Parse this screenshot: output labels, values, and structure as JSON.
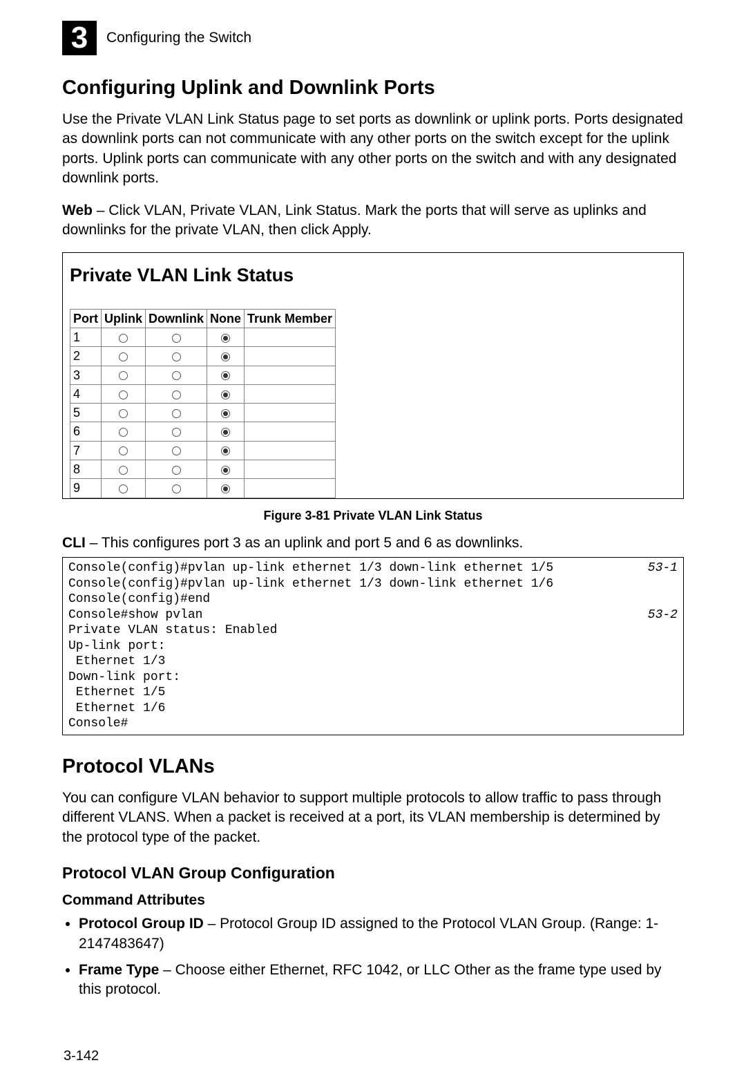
{
  "header": {
    "chapter_num": "3",
    "chapter_title": "Configuring the Switch"
  },
  "section1": {
    "title": "Configuring Uplink and Downlink Ports",
    "intro": "Use the Private VLAN Link Status page to set ports as downlink or uplink ports. Ports designated as downlink ports can not communicate with any other ports on the switch except for the uplink ports. Uplink ports can communicate with any other ports on the switch and with any designated downlink ports.",
    "web_label": "Web",
    "web_text": " – Click VLAN, Private VLAN, Link Status. Mark the ports that will serve as uplinks and downlinks for the private VLAN, then click Apply."
  },
  "figure": {
    "panel_title": "Private VLAN Link Status",
    "columns": [
      "Port",
      "Uplink",
      "Downlink",
      "None",
      "Trunk Member"
    ],
    "rows": [
      {
        "port": "1",
        "sel": "none"
      },
      {
        "port": "2",
        "sel": "none"
      },
      {
        "port": "3",
        "sel": "none"
      },
      {
        "port": "4",
        "sel": "none"
      },
      {
        "port": "5",
        "sel": "none"
      },
      {
        "port": "6",
        "sel": "none"
      },
      {
        "port": "7",
        "sel": "none"
      },
      {
        "port": "8",
        "sel": "none"
      },
      {
        "port": "9",
        "sel": "none"
      }
    ],
    "caption": "Figure 3-81  Private VLAN Link Status"
  },
  "cli": {
    "label": "CLI",
    "desc": " – This configures port 3 as an uplink and port 5 and 6 as downlinks.",
    "lines": [
      {
        "t": "Console(config)#pvlan up-link ethernet 1/3 down-link ethernet 1/5",
        "r": "53-1"
      },
      {
        "t": "Console(config)#pvlan up-link ethernet 1/3 down-link ethernet 1/6",
        "r": ""
      },
      {
        "t": "Console(config)#end",
        "r": ""
      },
      {
        "t": "Console#show pvlan",
        "r": "53-2"
      },
      {
        "t": "Private VLAN status: Enabled",
        "r": ""
      },
      {
        "t": "Up-link port:",
        "r": ""
      },
      {
        "t": " Ethernet 1/3",
        "r": ""
      },
      {
        "t": "Down-link port:",
        "r": ""
      },
      {
        "t": " Ethernet 1/5",
        "r": ""
      },
      {
        "t": " Ethernet 1/6",
        "r": ""
      },
      {
        "t": "Console#",
        "r": ""
      }
    ]
  },
  "section2": {
    "title": "Protocol VLANs",
    "intro": "You can configure VLAN behavior to support multiple protocols to allow traffic to pass through different VLANS. When a packet is received at a port, its VLAN membership is determined by the protocol type of the packet.",
    "sub_title": "Protocol VLAN Group Configuration",
    "cmd_attr_title": "Command Attributes",
    "attrs": [
      {
        "b": "Protocol Group ID",
        "t": " – Protocol Group ID assigned to the Protocol VLAN Group. (Range: 1-2147483647)"
      },
      {
        "b": "Frame Type",
        "t": " – Choose either Ethernet, RFC 1042, or LLC Other as the frame type used by this protocol."
      }
    ]
  },
  "page_number": "3-142"
}
